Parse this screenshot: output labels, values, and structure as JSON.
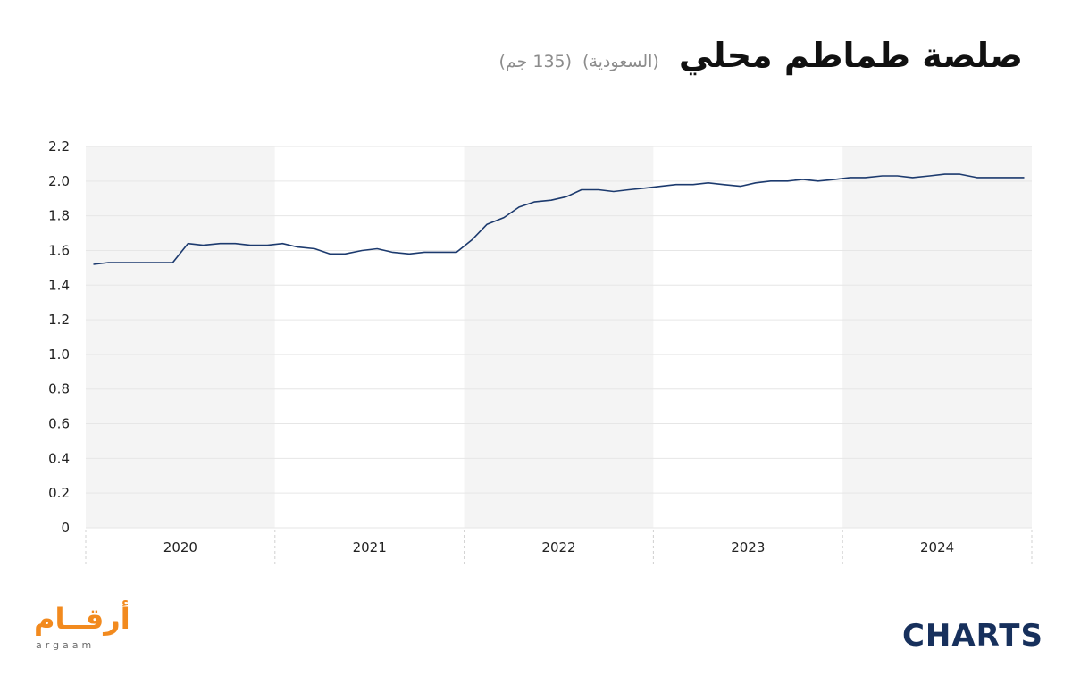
{
  "header": {
    "title": "صلصة طماطم محلي",
    "subtitle_country": "(السعودية)",
    "subtitle_size": "(135 جم)"
  },
  "logos": {
    "argaam_arabic": "أرقــام",
    "argaam_latin": "argaam",
    "charts": "CHARTS"
  },
  "colors": {
    "line": "#1c3a6e",
    "band_shaded": "#f4f4f4",
    "argaam_orange": "#f28a1e",
    "charts_navy": "#17305c",
    "charts_accent": "#f28a1e"
  },
  "chart_data": {
    "type": "line",
    "title": "صلصة طماطم محلي",
    "xlabel": "",
    "ylabel": "",
    "ylim": [
      0,
      2.2
    ],
    "yticks": [
      "0",
      "0.2",
      "0.4",
      "0.6",
      "0.8",
      "1.0",
      "1.2",
      "1.4",
      "1.6",
      "1.8",
      "2.0",
      "2.2"
    ],
    "xlim": [
      2020.0,
      2025.0
    ],
    "year_labels": [
      "2020",
      "2021",
      "2022",
      "2023",
      "2024"
    ],
    "grid": true,
    "legend": "none",
    "series": [
      {
        "x": [
          2020.04,
          2020.12,
          2020.21,
          2020.29,
          2020.37,
          2020.46,
          2020.54,
          2020.62,
          2020.71,
          2020.79,
          2020.87,
          2020.96,
          2021.04,
          2021.12,
          2021.21,
          2021.29,
          2021.37,
          2021.46,
          2021.54,
          2021.62,
          2021.71,
          2021.79,
          2021.87,
          2021.96,
          2022.04,
          2022.12,
          2022.21,
          2022.29,
          2022.37,
          2022.46,
          2022.54,
          2022.62,
          2022.71,
          2022.79,
          2022.87,
          2022.96,
          2023.04,
          2023.12,
          2023.21,
          2023.29,
          2023.37,
          2023.46,
          2023.54,
          2023.62,
          2023.71,
          2023.79,
          2023.87,
          2023.96,
          2024.04,
          2024.12,
          2024.21,
          2024.29,
          2024.37,
          2024.46,
          2024.54,
          2024.62,
          2024.71,
          2024.79,
          2024.87,
          2024.96
        ],
        "y": [
          1.52,
          1.53,
          1.53,
          1.53,
          1.53,
          1.53,
          1.64,
          1.63,
          1.64,
          1.64,
          1.63,
          1.63,
          1.64,
          1.62,
          1.61,
          1.58,
          1.58,
          1.6,
          1.61,
          1.59,
          1.58,
          1.59,
          1.59,
          1.59,
          1.66,
          1.75,
          1.79,
          1.85,
          1.88,
          1.89,
          1.91,
          1.95,
          1.95,
          1.94,
          1.95,
          1.96,
          1.97,
          1.98,
          1.98,
          1.99,
          1.98,
          1.97,
          1.99,
          2.0,
          2.0,
          2.01,
          2.0,
          2.01,
          2.02,
          2.02,
          2.03,
          2.03,
          2.02,
          2.03,
          2.04,
          2.04,
          2.02,
          2.02,
          2.02,
          2.02
        ]
      }
    ]
  }
}
